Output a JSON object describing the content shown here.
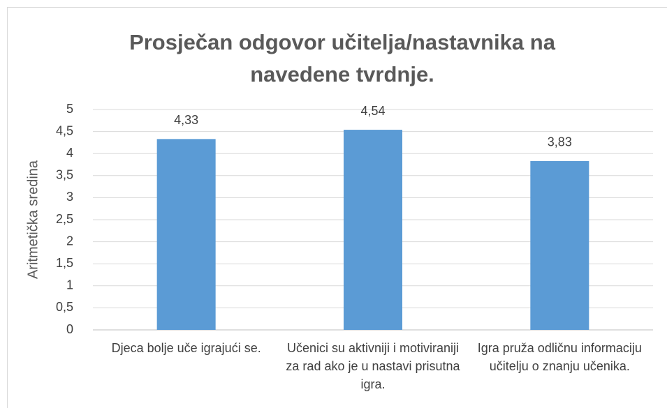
{
  "chart_data": {
    "type": "bar",
    "title": "Prosječan odgovor učitelja/nastavnika na navedene tvrdnje.",
    "y_axis_label": "Aritmetička sredina",
    "categories": [
      "Djeca bolje uče igrajući se.",
      "Učenici su aktivniji i motiviraniji za rad ako je u nastavi prisutna igra.",
      "Igra pruža odličnu informaciju učitelju o znanju učenika."
    ],
    "values": [
      4.33,
      4.54,
      3.83
    ],
    "value_labels": [
      "4,33",
      "4,54",
      "3,83"
    ],
    "color": "#5b9bd5",
    "ylim": [
      0,
      5
    ],
    "yticks": [
      0,
      {
        "value": 0.5,
        "label": "0,5"
      },
      1,
      {
        "value": 1.5,
        "label": "1,5"
      },
      2,
      {
        "value": 2.5,
        "label": "2,5"
      },
      3,
      {
        "value": 3.5,
        "label": "3,5"
      },
      4,
      {
        "value": 4.5,
        "label": "4,5"
      },
      5
    ],
    "grid": true
  }
}
